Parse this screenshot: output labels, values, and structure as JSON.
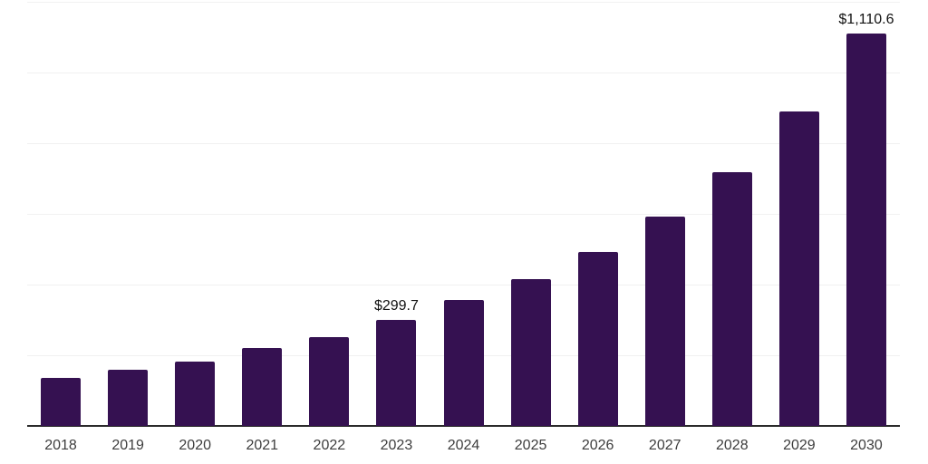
{
  "chart_data": {
    "type": "bar",
    "title": "",
    "xlabel": "",
    "ylabel": "",
    "categories": [
      "2018",
      "2019",
      "2020",
      "2021",
      "2022",
      "2023",
      "2024",
      "2025",
      "2026",
      "2027",
      "2028",
      "2029",
      "2030"
    ],
    "values": [
      136,
      159,
      183,
      220,
      252,
      299.7,
      356,
      416,
      493,
      592,
      717,
      890,
      1110.6
    ],
    "point_labels": [
      "",
      "",
      "",
      "",
      "",
      "$299.7",
      "",
      "",
      "",
      "",
      "",
      "",
      "$1,110.6"
    ],
    "ylim": [
      0,
      1200
    ],
    "gridline_step": 200,
    "grid": "horizontal-only",
    "legend": "none",
    "y_axis_tick_labels_visible": false,
    "colors": {
      "bar": "#351151",
      "gridline": "#f1f1f1",
      "axis_line": "#2b2b2b",
      "tick_label": "#3d3d3d",
      "value_label": "#111111",
      "background": "#ffffff"
    }
  }
}
